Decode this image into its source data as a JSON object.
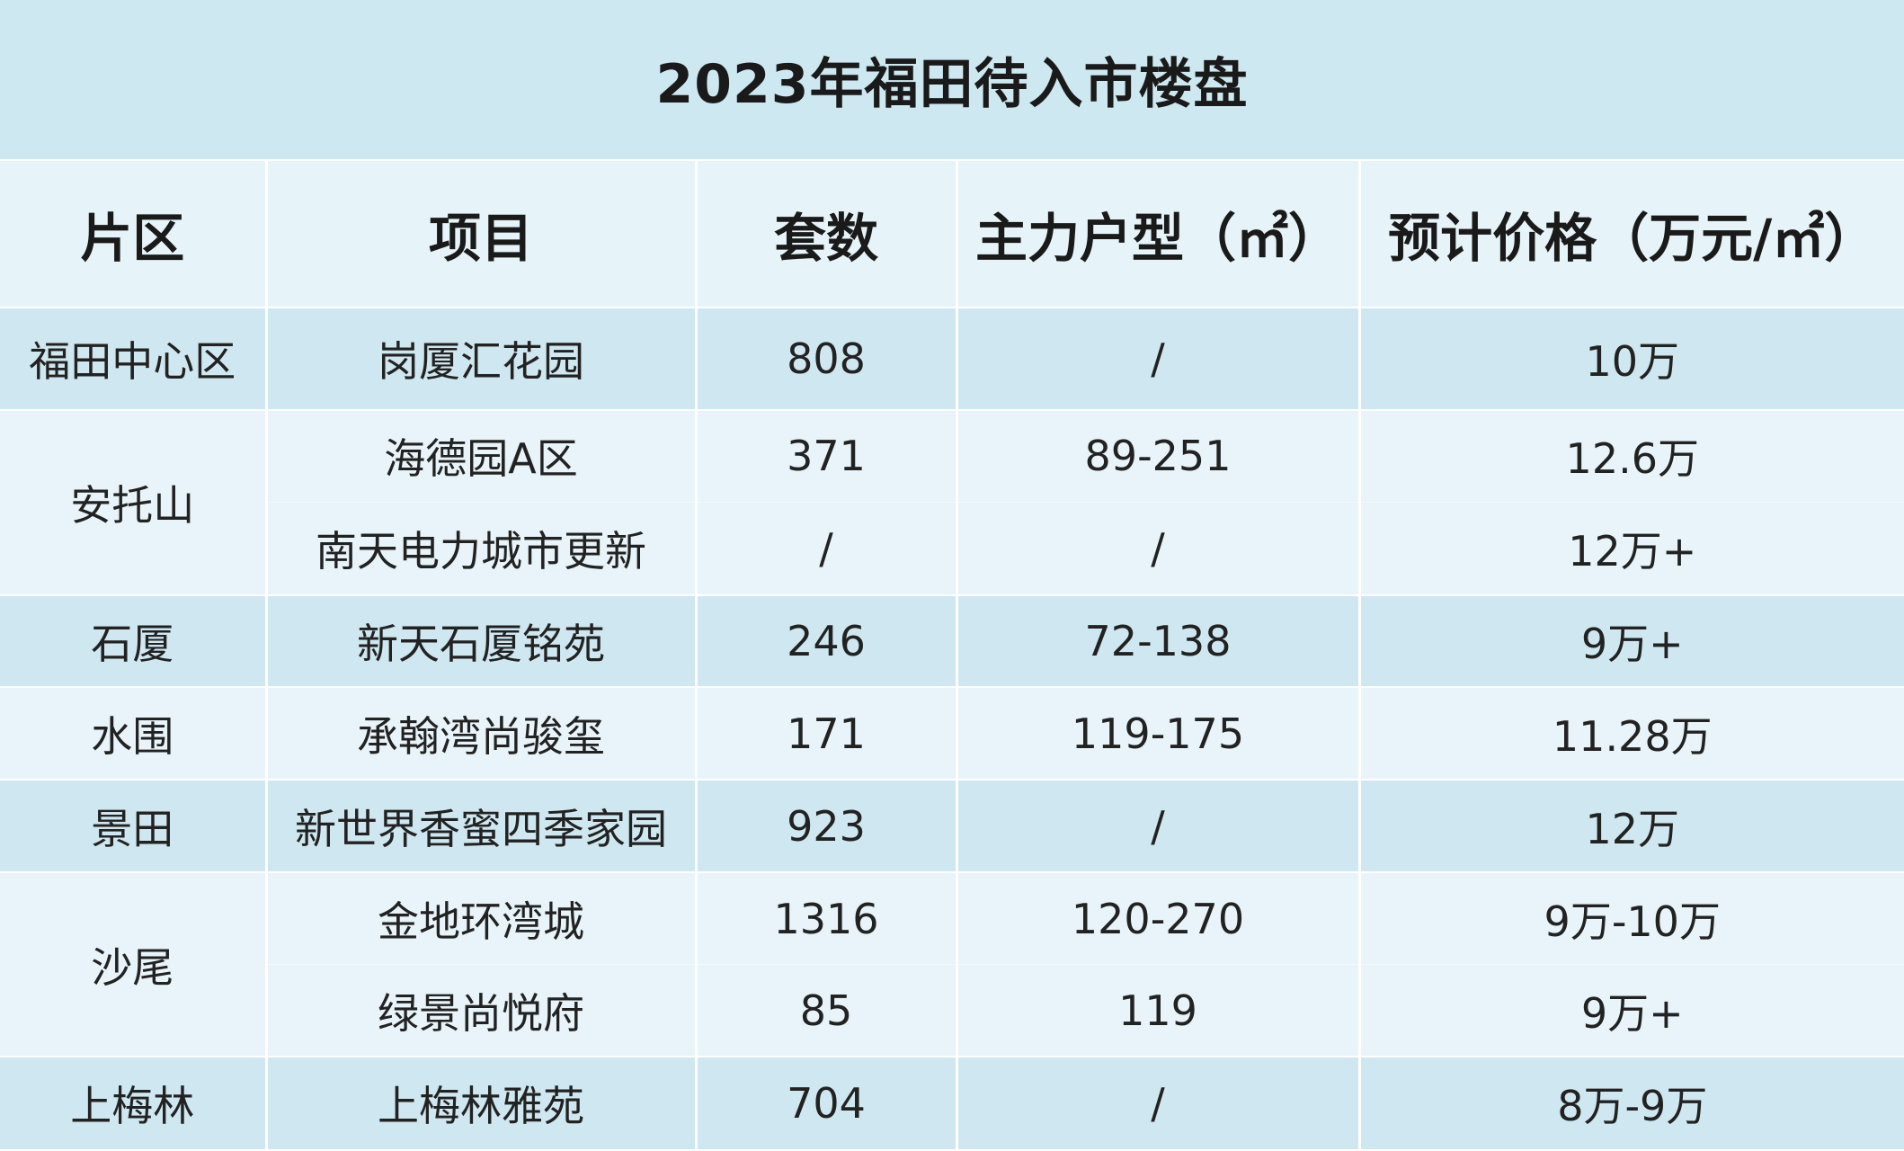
{
  "title": "2023年福田待入市楼盘",
  "headers": [
    "片区",
    "项目",
    "套数",
    "主力户型（㎡）",
    "预计价格（万元/㎡）"
  ],
  "rows": [
    {
      "district": "福田中心区",
      "project": "岗厦汇花园",
      "units": "808",
      "unit_type": "/",
      "price": "10万"
    },
    {
      "district": "安托山",
      "project": "海德园A区",
      "units": "371",
      "unit_type": "89-251",
      "price": "12.6万"
    },
    {
      "district": "",
      "project": "南天电力城市更新",
      "units": "/",
      "unit_type": "/",
      "price": "12万+"
    },
    {
      "district": "石厦",
      "project": "新天石厦铭苑",
      "units": "246",
      "unit_type": "72-138",
      "price": "9万+"
    },
    {
      "district": "水围",
      "project": "承翰湾尚骏玺",
      "units": "171",
      "unit_type": "119-175",
      "price": "11.28万"
    },
    {
      "district": "景田",
      "project": "新世界香蜜四季家园",
      "units": "923",
      "unit_type": "/",
      "price": "12万"
    },
    {
      "district": "沙尾",
      "project": "金地环湾城",
      "units": "1316",
      "unit_type": "120-270",
      "price": "9万-10万"
    },
    {
      "district": "",
      "project": "绿景尚悦府",
      "units": "85",
      "unit_type": "119",
      "price": "9万+"
    },
    {
      "district": "上梅林",
      "project": "上梅林雅苑",
      "units": "704",
      "unit_type": "/",
      "price": "8万-9万"
    }
  ],
  "colors": {
    "title_bg": "#cde8f1",
    "header_bg": "#e6f3f8",
    "band_dark": "#cfe7f0",
    "band_light": "#e8f4f9",
    "watermark": "#8ecfe6"
  }
}
